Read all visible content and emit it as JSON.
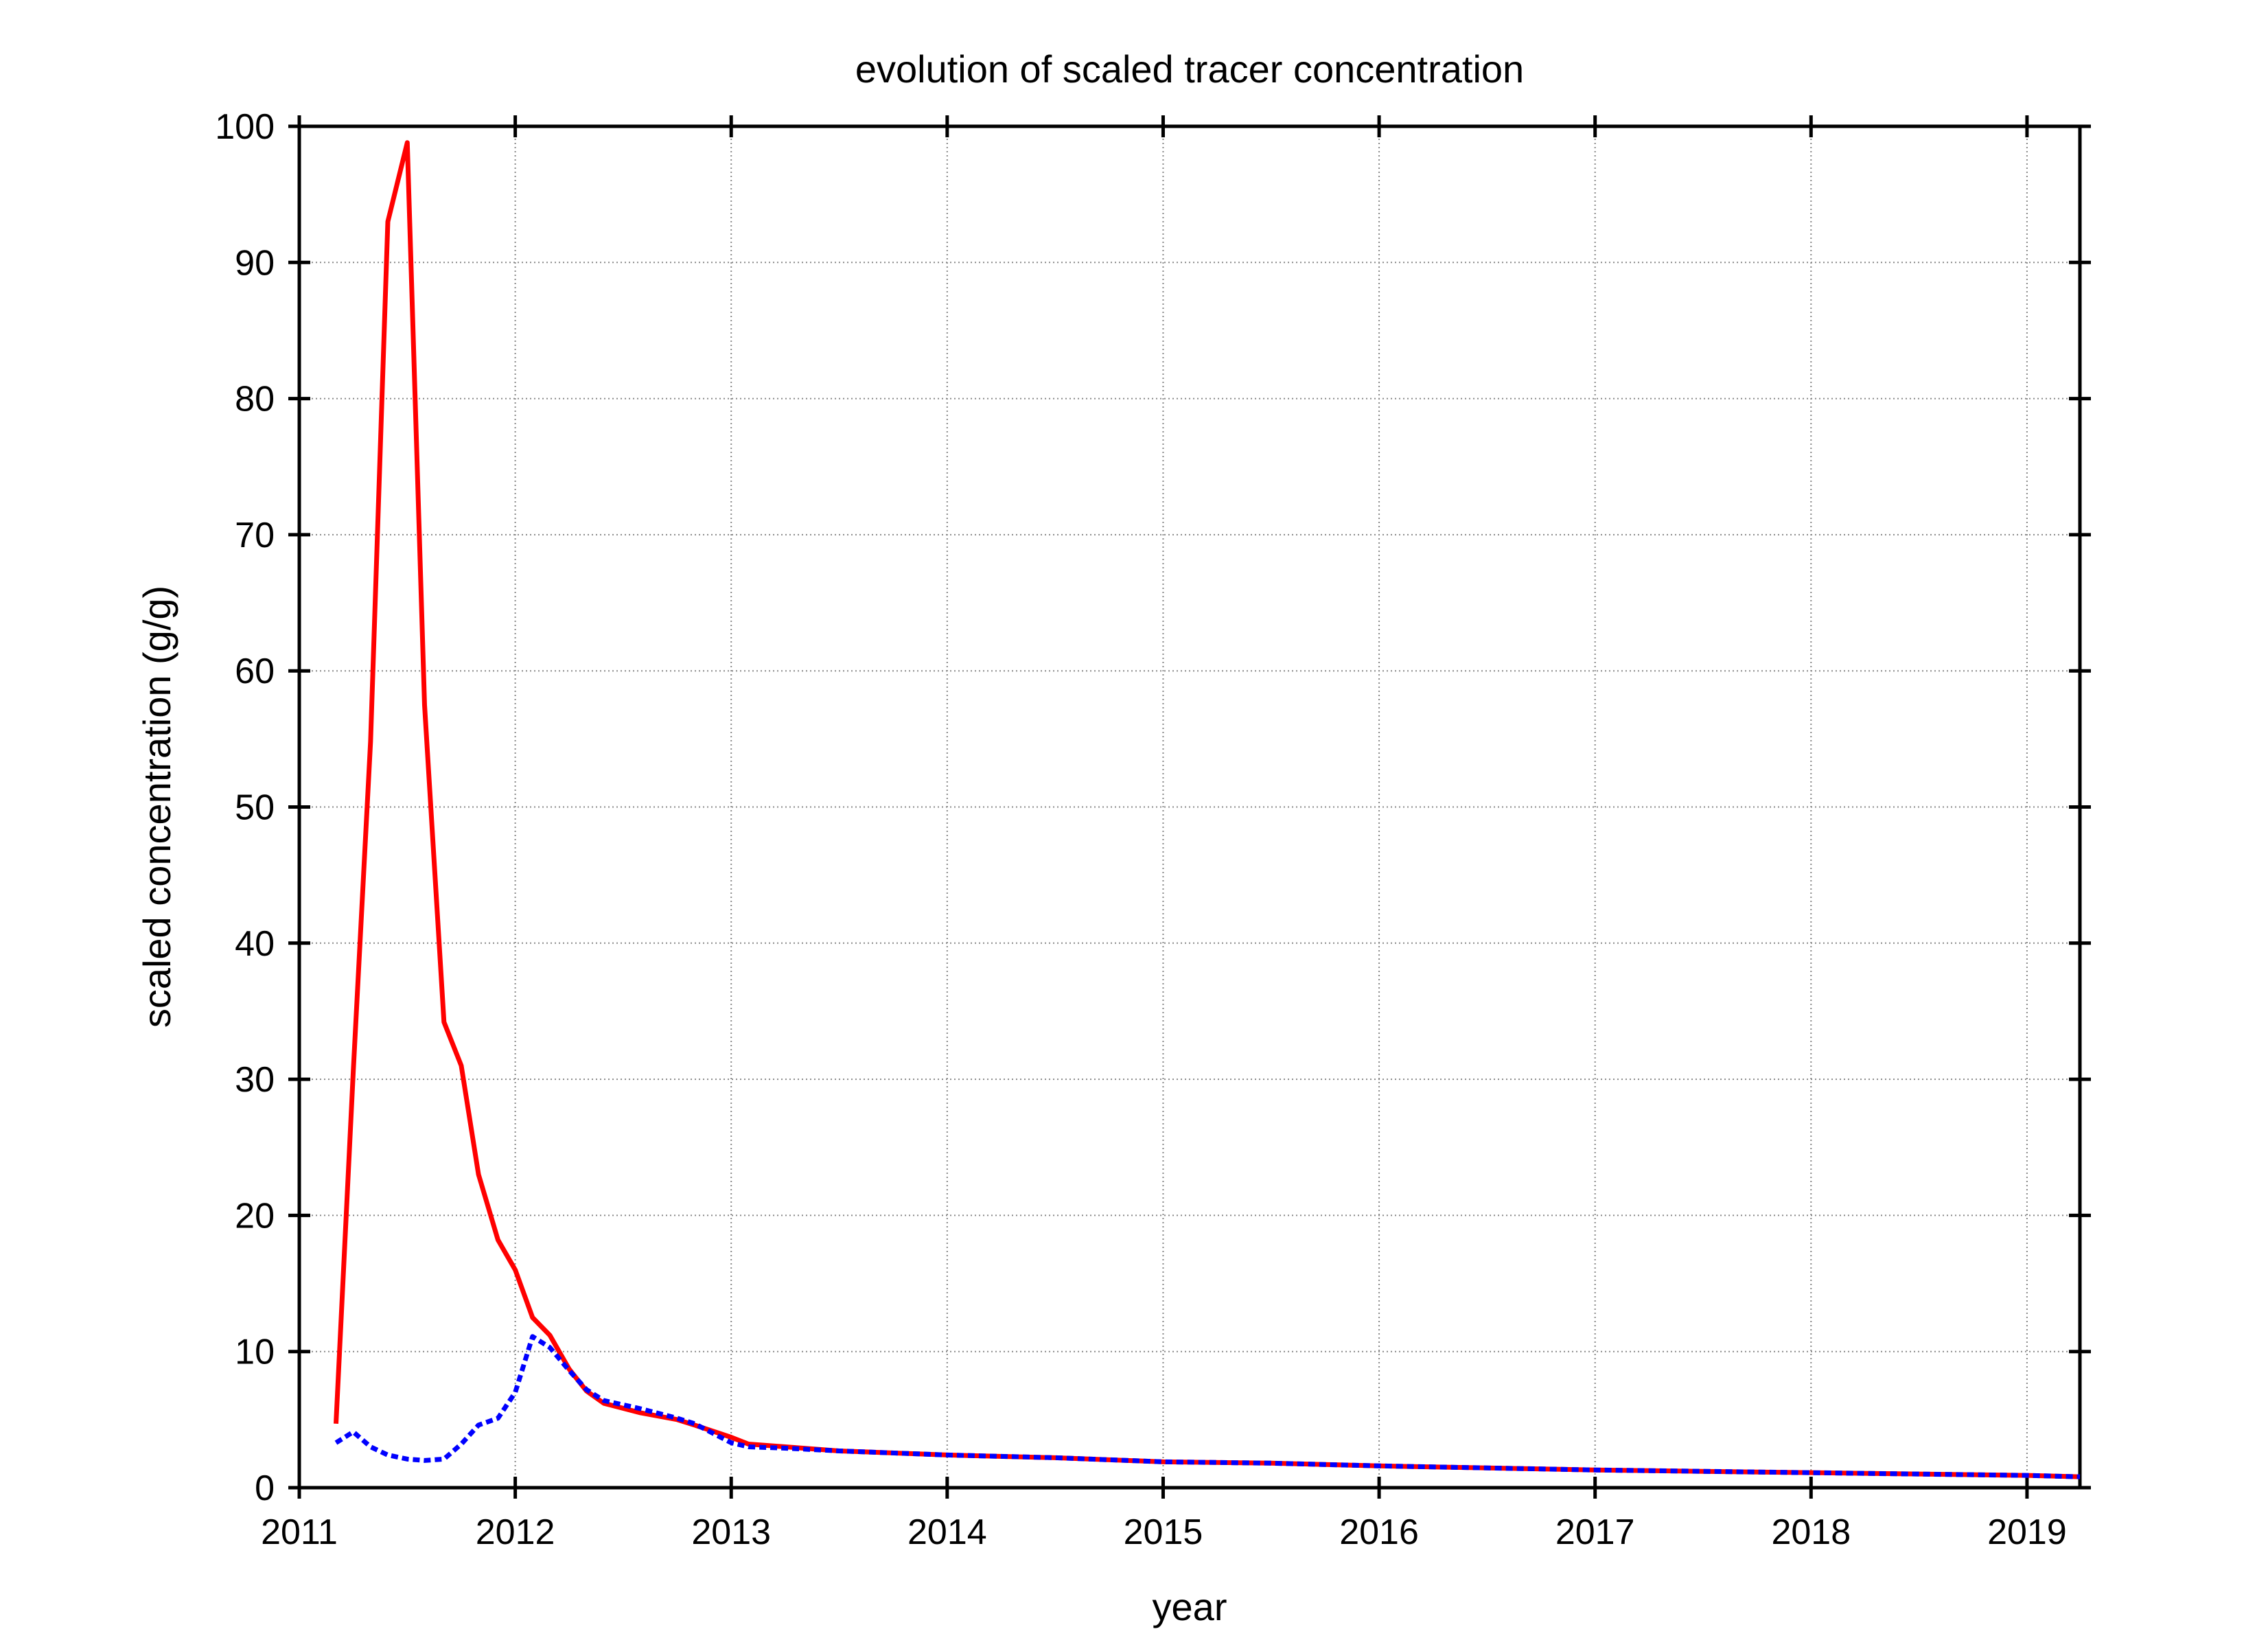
{
  "chart_data": {
    "type": "line",
    "title": "evolution of  scaled tracer concentration",
    "x_label": "year",
    "y_label": "scaled concentration (g/g)",
    "xlim": [
      2011,
      2019.245
    ],
    "xticks": [
      2011,
      2012,
      2013,
      2014,
      2015,
      2016,
      2017,
      2018,
      2019
    ],
    "ylim": [
      0,
      100
    ],
    "yticks": [
      0,
      10,
      20,
      30,
      40,
      50,
      60,
      70,
      80,
      90,
      100
    ],
    "grid": true,
    "x": [
      2011.17,
      2011.25,
      2011.33,
      2011.41,
      2011.5,
      2011.58,
      2011.67,
      2011.75,
      2011.83,
      2011.92,
      2012.0,
      2012.08,
      2012.16,
      2012.25,
      2012.33,
      2012.41,
      2012.58,
      2012.75,
      2012.83,
      2013.0,
      2013.08,
      2013.25,
      2013.5,
      2014.0,
      2014.5,
      2015.0,
      2015.5,
      2016.0,
      2016.5,
      2017.0,
      2017.5,
      2018.0,
      2018.5,
      2019.0,
      2019.245
    ],
    "series": [
      {
        "name": "red",
        "color": "#ff0000",
        "dash": false,
        "values": [
          4.7,
          30.6,
          54.8,
          93,
          98.8,
          57.5,
          34.2,
          31,
          23,
          18.2,
          16,
          12.5,
          11.2,
          8.7,
          7.1,
          6.2,
          5.5,
          5.0,
          4.6,
          3.7,
          3.2,
          3.0,
          2.7,
          2.4,
          2.2,
          1.9,
          1.8,
          1.6,
          1.45,
          1.3,
          1.2,
          1.1,
          1.0,
          0.9,
          0.8
        ]
      },
      {
        "name": "blue",
        "color": "#0000ff",
        "dash": true,
        "values": [
          3.3,
          4.1,
          3.0,
          2.4,
          2.1,
          2.0,
          2.1,
          3.2,
          4.6,
          5.1,
          7.0,
          11.1,
          10.3,
          8.6,
          7.2,
          6.4,
          5.8,
          5.1,
          4.7,
          3.3,
          3.0,
          2.9,
          2.7,
          2.4,
          2.2,
          1.9,
          1.8,
          1.6,
          1.45,
          1.3,
          1.2,
          1.1,
          1.0,
          0.9,
          0.8
        ]
      }
    ]
  }
}
